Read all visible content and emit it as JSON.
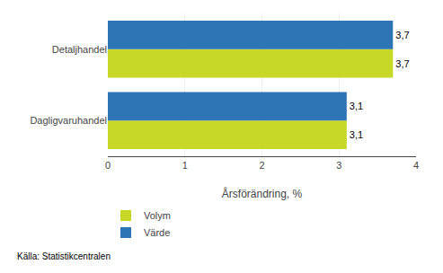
{
  "chart_data": {
    "type": "bar",
    "orientation": "horizontal",
    "categories": [
      "Dagligvaruhandel",
      "Detaljhandel"
    ],
    "series": [
      {
        "name": "Volym",
        "color": "#c8d827",
        "values": [
          3.1,
          3.7
        ],
        "value_labels": [
          "3,1",
          "3,7"
        ]
      },
      {
        "name": "Värde",
        "color": "#2e75b6",
        "values": [
          3.1,
          3.7
        ],
        "value_labels": [
          "3,1",
          "3,7"
        ]
      }
    ],
    "xlabel": "Årsförändring, %",
    "xlim": [
      0,
      4
    ],
    "xticks": [
      0,
      1,
      2,
      3,
      4
    ],
    "grid": true,
    "data_labels": true,
    "legend": "lower left",
    "annotations": [
      "Källa: Statistikcentralen"
    ]
  }
}
